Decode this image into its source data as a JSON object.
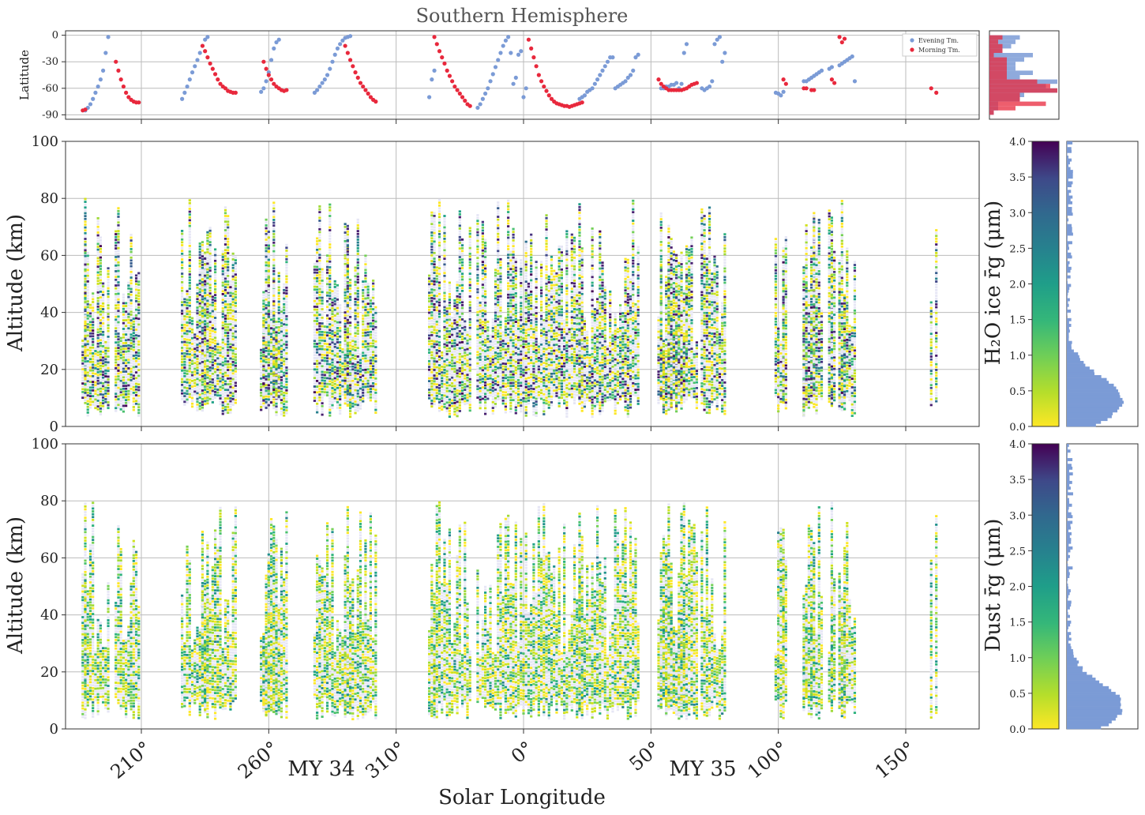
{
  "chart_data": [
    {
      "panel": "latitude",
      "type": "scatter",
      "title": "Southern Hemisphere",
      "ylabel": "Latitude",
      "ylim": [
        -95,
        5
      ],
      "yticks": [
        0,
        -30,
        -60,
        -90
      ],
      "legend": [
        "Evening Tm.",
        "Morning Tm."
      ],
      "legend_position": "top-right",
      "colors": {
        "evening": "#7b9bd6",
        "morning": "#e8283c"
      },
      "series": [
        {
          "name": "Evening Tm.",
          "x": [
            188,
            189,
            190,
            191,
            192,
            193,
            194,
            195,
            196,
            197,
            226,
            227,
            228,
            229,
            230,
            231,
            232,
            233,
            234,
            235,
            236,
            257,
            258,
            259,
            260,
            261,
            262,
            263,
            264,
            278,
            279,
            280,
            281,
            282,
            283,
            284,
            285,
            286,
            287,
            288,
            289,
            290,
            291,
            292,
            323,
            324,
            325,
            342,
            343,
            344,
            345,
            346,
            347,
            348,
            349,
            350,
            351,
            352,
            353,
            354,
            355,
            356,
            357,
            358,
            359,
            360,
            361,
            382,
            383,
            384,
            385,
            386,
            387,
            388,
            389,
            390,
            391,
            392,
            393,
            394,
            395,
            396,
            397,
            398,
            399,
            400,
            401,
            402,
            403,
            404,
            405,
            414,
            415,
            416,
            417,
            418,
            419,
            420,
            421,
            422,
            423,
            424,
            430,
            431,
            432,
            433,
            434,
            435,
            436,
            437,
            438,
            439,
            459,
            460,
            461,
            462,
            470,
            471,
            472,
            473,
            474,
            475,
            476,
            477,
            480,
            481,
            484,
            485,
            486,
            487,
            488,
            489,
            490
          ],
          "y": [
            -85,
            -82,
            -78,
            -72,
            -65,
            -58,
            -50,
            -40,
            -20,
            -2,
            -72,
            -65,
            -58,
            -50,
            -42,
            -35,
            -28,
            -20,
            -12,
            -5,
            -2,
            -64,
            -60,
            -52,
            -42,
            -28,
            -15,
            -8,
            -5,
            -65,
            -62,
            -58,
            -54,
            -50,
            -45,
            -38,
            -30,
            -22,
            -15,
            -10,
            -6,
            -3,
            -2,
            -1,
            -70,
            -50,
            -40,
            -82,
            -78,
            -72,
            -66,
            -60,
            -52,
            -44,
            -36,
            -28,
            -20,
            -12,
            -6,
            -2,
            -20,
            -55,
            -48,
            -22,
            -18,
            -70,
            -60,
            -72,
            -70,
            -68,
            -64,
            -62,
            -60,
            -55,
            -50,
            -45,
            -40,
            -35,
            -30,
            -25,
            -25,
            -60,
            -58,
            -56,
            -54,
            -52,
            -48,
            -45,
            -40,
            -25,
            -22,
            -60,
            -60,
            -58,
            -58,
            -56,
            -56,
            -54,
            -60,
            -55,
            -20,
            -10,
            -60,
            -62,
            -60,
            -58,
            -52,
            -10,
            -5,
            -2,
            -30,
            -20,
            -65,
            -66,
            -68,
            -64,
            -52,
            -52,
            -50,
            -48,
            -46,
            -44,
            -42,
            -40,
            -38,
            -36,
            -34,
            -32,
            -30,
            -28,
            -26,
            -24,
            -52
          ]
        },
        {
          "name": "Morning Tm.",
          "x": [
            187,
            188,
            200,
            201,
            202,
            203,
            204,
            205,
            206,
            207,
            208,
            209,
            234,
            235,
            236,
            237,
            238,
            239,
            240,
            241,
            242,
            243,
            244,
            245,
            246,
            247,
            258,
            259,
            260,
            261,
            262,
            263,
            264,
            265,
            266,
            267,
            290,
            291,
            292,
            293,
            294,
            295,
            296,
            297,
            298,
            299,
            300,
            301,
            302,
            325,
            326,
            327,
            328,
            329,
            330,
            331,
            332,
            333,
            334,
            335,
            336,
            337,
            338,
            339,
            2,
            3,
            4,
            5,
            6,
            7,
            8,
            9,
            10,
            11,
            12,
            13,
            14,
            15,
            16,
            17,
            18,
            19,
            20,
            21,
            22,
            23,
            53,
            54,
            55,
            56,
            57,
            58,
            59,
            60,
            61,
            62,
            63,
            64,
            65,
            66,
            67,
            68,
            102,
            103,
            110,
            111,
            113,
            114,
            121,
            122,
            124,
            125,
            126,
            160,
            162
          ],
          "y": [
            -85,
            -84,
            -30,
            -40,
            -50,
            -58,
            -65,
            -70,
            -73,
            -75,
            -76,
            -76,
            -12,
            -18,
            -25,
            -32,
            -38,
            -44,
            -50,
            -55,
            -58,
            -60,
            -63,
            -64,
            -65,
            -65,
            -30,
            -38,
            -45,
            -50,
            -55,
            -58,
            -60,
            -62,
            -63,
            -62,
            -12,
            -20,
            -28,
            -35,
            -42,
            -48,
            -54,
            -58,
            -62,
            -66,
            -70,
            -73,
            -75,
            -2,
            -10,
            -18,
            -25,
            -32,
            -40,
            -46,
            -52,
            -58,
            -62,
            -66,
            -70,
            -74,
            -78,
            -80,
            -5,
            -15,
            -25,
            -35,
            -45,
            -52,
            -58,
            -63,
            -68,
            -72,
            -75,
            -77,
            -78,
            -79,
            -80,
            -80,
            -81,
            -80,
            -79,
            -78,
            -77,
            -76,
            -50,
            -55,
            -58,
            -60,
            -62,
            -62,
            -62,
            -62,
            -62,
            -62,
            -61,
            -60,
            -58,
            -56,
            -55,
            -54,
            -50,
            -55,
            -60,
            -60,
            -62,
            -62,
            -50,
            -54,
            -2,
            -8,
            -4,
            -60,
            -65
          ]
        }
      ]
    },
    {
      "panel": "h2o_ice",
      "type": "heatmap",
      "ylabel": "Altitude (km)",
      "ylim": [
        0,
        100
      ],
      "yticks": [
        0,
        20,
        40,
        60,
        80,
        100
      ],
      "colorbar": {
        "label": "H₂O ice r̄g (μm)",
        "range": [
          0,
          4
        ],
        "ticks": [
          0.0,
          0.5,
          1.0,
          1.5,
          2.0,
          2.5,
          3.0,
          3.5,
          4.0
        ],
        "colormap": "viridis_r"
      },
      "histogram_peak_um": 0.3
    },
    {
      "panel": "dust",
      "type": "heatmap",
      "ylabel": "Altitude (km)",
      "ylim": [
        0,
        100
      ],
      "yticks": [
        0,
        20,
        40,
        60,
        80,
        100
      ],
      "colorbar": {
        "label": "Dust r̄g (μm)",
        "range": [
          0,
          4
        ],
        "ticks": [
          0.0,
          0.5,
          1.0,
          1.5,
          2.0,
          2.5,
          3.0,
          3.5,
          4.0
        ],
        "colormap": "viridis_r"
      },
      "histogram_peak_um": 0.3
    }
  ],
  "xaxis": {
    "label": "Solar Longitude",
    "ticks": [
      "210°",
      "260°",
      "310°",
      "0°",
      "50°",
      "100°",
      "150°"
    ],
    "years": [
      "MY 34",
      "MY 35"
    ]
  },
  "text": {
    "ylabel_top": "Latitude",
    "ylabel_mid": "Altitude (km)",
    "ylabel_bot": "Altitude (km)",
    "cbar_label_mid": "H₂O ice r̄g (μm)",
    "cbar_label_bot": "Dust r̄g (μm)"
  }
}
